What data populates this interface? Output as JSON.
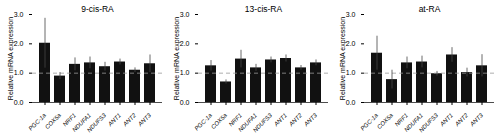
{
  "chart_data": [
    {
      "type": "bar",
      "title": "9-cis-RA",
      "categories": [
        "PGC-1a",
        "COX5a",
        "NRF1",
        "NDUFA1",
        "NDUFS3",
        "ANT1",
        "ANT2",
        "ANT3"
      ],
      "values": [
        2.02,
        0.9,
        1.3,
        1.35,
        1.22,
        1.38,
        1.1,
        1.32
      ],
      "errors": [
        0.85,
        0.12,
        0.22,
        0.2,
        0.15,
        0.1,
        0.08,
        0.3
      ],
      "color": "#111111",
      "ylabel": "Relative mRNA expression",
      "ylim": [
        0,
        3.0
      ],
      "yticks": [
        0,
        1,
        2,
        3
      ],
      "grid": false,
      "reference_line": {
        "value": 1.0,
        "color": "#999999",
        "line_style": "dashed"
      }
    },
    {
      "type": "bar",
      "title": "13-cis-RA",
      "categories": [
        "PGC-1a",
        "COX5a",
        "NRF1",
        "NDUFA1",
        "NDUFS3",
        "ANT1",
        "ANT2",
        "ANT3"
      ],
      "values": [
        1.25,
        0.7,
        1.48,
        1.18,
        1.45,
        1.5,
        1.18,
        1.35
      ],
      "errors": [
        0.18,
        0.07,
        0.3,
        0.12,
        0.1,
        0.12,
        0.08,
        0.1
      ],
      "color": "#111111",
      "ylabel": "Relative mRNA expression",
      "ylim": [
        0,
        3.0
      ],
      "yticks": [
        0,
        1,
        2,
        3
      ],
      "grid": false,
      "reference_line": {
        "value": 1.0,
        "color": "#999999",
        "line_style": "dashed"
      }
    },
    {
      "type": "bar",
      "title": "at-RA",
      "categories": [
        "PGC-1a",
        "COX5a",
        "NRF1",
        "NDUFA1",
        "NDUFS3",
        "ANT1",
        "ANT2",
        "ANT3"
      ],
      "values": [
        1.68,
        0.78,
        1.35,
        1.38,
        0.98,
        1.62,
        1.02,
        1.25
      ],
      "errors": [
        0.58,
        0.32,
        0.2,
        0.2,
        0.08,
        0.25,
        0.15,
        0.38
      ],
      "color": "#111111",
      "ylabel": "Relative mRNA expression",
      "ylim": [
        0,
        3.0
      ],
      "yticks": [
        0,
        1,
        2,
        3
      ],
      "grid": false,
      "reference_line": {
        "value": 1.0,
        "color": "#999999",
        "line_style": "dashed"
      }
    }
  ]
}
